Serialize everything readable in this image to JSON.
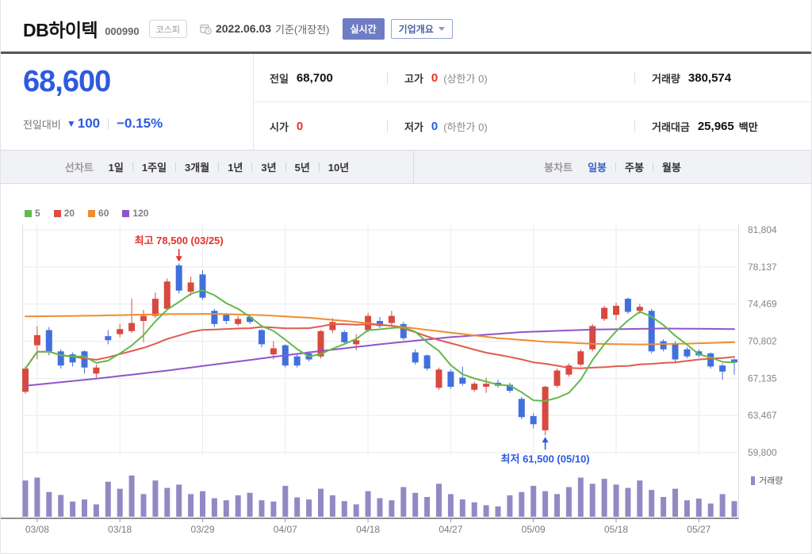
{
  "header": {
    "title": "DB하이텍",
    "code": "000990",
    "market": "코스피",
    "date": "2022.06.03",
    "date_suffix": "기준(개장전)",
    "realtime_btn": "실시간",
    "overview_btn": "기업개요"
  },
  "quote": {
    "price": "68,600",
    "change_label": "전일대비",
    "change_dir": "▼",
    "change_value": "100",
    "change_pct": "−0.15%",
    "prev_label": "전일",
    "prev_value": "68,700",
    "high_label": "고가",
    "high_value": "0",
    "high_sub": "(상한가 0)",
    "volume_label": "거래량",
    "volume_value": "380,574",
    "open_label": "시가",
    "open_value": "0",
    "low_label": "저가",
    "low_value": "0",
    "low_sub": "(하한가 0)",
    "amount_label": "거래대금",
    "amount_value": "25,965",
    "amount_unit": "백만"
  },
  "toolbar": {
    "line_label": "선차트",
    "line_items": [
      "1일",
      "1주일",
      "3개월",
      "1년",
      "3년",
      "5년",
      "10년"
    ],
    "candle_label": "봉차트",
    "candle_items": [
      "일봉",
      "주봉",
      "월봉"
    ],
    "active": "일봉"
  },
  "chart_data": {
    "type": "candlestick+volume",
    "ma_legend": [
      {
        "label": "5",
        "color": "#63b94d"
      },
      {
        "label": "20",
        "color": "#dd4b42"
      },
      {
        "label": "60",
        "color": "#ee8d2f"
      },
      {
        "label": "120",
        "color": "#9055c8"
      }
    ],
    "volume_legend": "거래량",
    "y_ticks": [
      81804,
      78137,
      74469,
      70802,
      67135,
      63467,
      59800
    ],
    "x_ticks": [
      {
        "i": 1,
        "label": "03/08"
      },
      {
        "i": 8,
        "label": "03/18"
      },
      {
        "i": 15,
        "label": "03/29"
      },
      {
        "i": 22,
        "label": "04/07"
      },
      {
        "i": 29,
        "label": "04/18"
      },
      {
        "i": 36,
        "label": "04/27"
      },
      {
        "i": 43,
        "label": "05/09"
      },
      {
        "i": 50,
        "label": "05/18"
      },
      {
        "i": 57,
        "label": "05/27"
      }
    ],
    "annotations": {
      "high": {
        "idx": 13,
        "price": 78500,
        "text": "최고 78,500 (03/25)",
        "color": "#e5312b"
      },
      "low": {
        "idx": 44,
        "price": 61500,
        "text": "최저 61,500 (05/10)",
        "color": "#2d5ae0"
      }
    },
    "candles": [
      [
        "03/07",
        65800,
        68300,
        65600,
        68100,
        88
      ],
      [
        "03/08",
        70400,
        72300,
        69000,
        71400,
        95
      ],
      [
        "03/10",
        71900,
        72200,
        69400,
        69800,
        60
      ],
      [
        "03/11",
        69800,
        70000,
        68100,
        68400,
        53
      ],
      [
        "03/14",
        69500,
        69700,
        68300,
        68700,
        37
      ],
      [
        "03/15",
        69800,
        69900,
        67600,
        68200,
        42
      ],
      [
        "03/16",
        67600,
        68500,
        67200,
        68200,
        30
      ],
      [
        "03/17",
        71300,
        71900,
        70500,
        70900,
        85
      ],
      [
        "03/18",
        71500,
        72500,
        71200,
        72000,
        68
      ],
      [
        "03/21",
        71800,
        75000,
        71600,
        72600,
        100
      ],
      [
        "03/22",
        72800,
        73900,
        70700,
        73300,
        55
      ],
      [
        "03/23",
        73300,
        75600,
        73100,
        75000,
        88
      ],
      [
        "03/24",
        74000,
        77000,
        73900,
        76700,
        70
      ],
      [
        "03/25",
        78300,
        78500,
        75500,
        75800,
        78
      ],
      [
        "03/28",
        75700,
        77200,
        75300,
        76600,
        55
      ],
      [
        "03/29",
        77400,
        77800,
        74900,
        75100,
        62
      ],
      [
        "03/30",
        73800,
        74000,
        72200,
        72500,
        45
      ],
      [
        "03/31",
        73400,
        73600,
        72500,
        72800,
        40
      ],
      [
        "04/01",
        72500,
        73300,
        72300,
        73000,
        52
      ],
      [
        "04/04",
        73200,
        73400,
        72500,
        72700,
        58
      ],
      [
        "04/05",
        71900,
        72000,
        70200,
        70500,
        40
      ],
      [
        "04/06",
        69500,
        70800,
        69000,
        70100,
        37
      ],
      [
        "04/07",
        70400,
        70500,
        68200,
        68400,
        75
      ],
      [
        "04/08",
        69300,
        69500,
        68200,
        68400,
        47
      ],
      [
        "04/11",
        69600,
        69800,
        68800,
        69000,
        42
      ],
      [
        "04/12",
        69300,
        71900,
        69100,
        71800,
        68
      ],
      [
        "04/13",
        71900,
        73100,
        71600,
        72700,
        52
      ],
      [
        "04/14",
        71700,
        71900,
        70500,
        70700,
        38
      ],
      [
        "04/15",
        70500,
        71500,
        69900,
        70900,
        30
      ],
      [
        "04/18",
        71900,
        73600,
        71700,
        73300,
        62
      ],
      [
        "04/19",
        72800,
        73200,
        72100,
        72300,
        45
      ],
      [
        "04/20",
        72600,
        73800,
        72400,
        73300,
        40
      ],
      [
        "04/21",
        72500,
        72700,
        70900,
        71100,
        72
      ],
      [
        "04/22",
        69700,
        70000,
        68500,
        68700,
        58
      ],
      [
        "04/25",
        69400,
        69500,
        67900,
        68100,
        48
      ],
      [
        "04/26",
        66200,
        68200,
        66000,
        68000,
        80
      ],
      [
        "04/27",
        67800,
        68000,
        66100,
        66300,
        55
      ],
      [
        "04/28",
        67200,
        68300,
        66400,
        66600,
        42
      ],
      [
        "04/29",
        66000,
        66800,
        65800,
        66600,
        35
      ],
      [
        "05/02",
        66300,
        67200,
        65700,
        66600,
        28
      ],
      [
        "05/03",
        66700,
        67000,
        66200,
        66400,
        25
      ],
      [
        "05/04",
        66500,
        66700,
        65700,
        65900,
        52
      ],
      [
        "05/06",
        65100,
        65300,
        63100,
        63300,
        60
      ],
      [
        "05/09",
        63400,
        63700,
        62200,
        62600,
        75
      ],
      [
        "05/10",
        62000,
        66400,
        61500,
        66300,
        62
      ],
      [
        "05/11",
        66400,
        68100,
        66200,
        67900,
        55
      ],
      [
        "05/12",
        67500,
        68600,
        67300,
        68400,
        72
      ],
      [
        "05/13",
        68500,
        70000,
        68300,
        69800,
        95
      ],
      [
        "05/16",
        70000,
        72500,
        69800,
        72300,
        80
      ],
      [
        "05/17",
        73000,
        74300,
        72800,
        74100,
        92
      ],
      [
        "05/18",
        73400,
        74600,
        72900,
        74300,
        78
      ],
      [
        "05/19",
        75000,
        75100,
        73500,
        73700,
        70
      ],
      [
        "05/20",
        73800,
        74500,
        73500,
        74200,
        88
      ],
      [
        "05/23",
        73800,
        74000,
        69600,
        69800,
        65
      ],
      [
        "05/24",
        70800,
        71000,
        69800,
        70000,
        48
      ],
      [
        "05/25",
        70600,
        70800,
        68800,
        69000,
        68
      ],
      [
        "05/26",
        70000,
        70200,
        69100,
        69300,
        40
      ],
      [
        "05/27",
        69800,
        70000,
        69200,
        69400,
        44
      ],
      [
        "05/30",
        69600,
        69700,
        68100,
        68300,
        32
      ],
      [
        "05/31",
        68400,
        68600,
        67000,
        67800,
        55
      ],
      [
        "06/02",
        69000,
        69100,
        67500,
        68700,
        38
      ]
    ],
    "ma60_anchors": [
      [
        0,
        73250
      ],
      [
        6,
        73330
      ],
      [
        12,
        73470
      ],
      [
        16,
        73500
      ],
      [
        20,
        73380
      ],
      [
        24,
        73120
      ],
      [
        28,
        72700
      ],
      [
        32,
        72200
      ],
      [
        36,
        71650
      ],
      [
        40,
        71100
      ],
      [
        44,
        70750
      ],
      [
        48,
        70550
      ],
      [
        52,
        70480
      ],
      [
        56,
        70560
      ],
      [
        60,
        70700
      ]
    ],
    "ma120_anchors": [
      [
        0,
        66400
      ],
      [
        6,
        67100
      ],
      [
        12,
        67900
      ],
      [
        18,
        68800
      ],
      [
        24,
        69700
      ],
      [
        30,
        70500
      ],
      [
        36,
        71200
      ],
      [
        42,
        71700
      ],
      [
        48,
        71950
      ],
      [
        54,
        72060
      ],
      [
        60,
        72000
      ]
    ],
    "colors": {
      "up": "#d8493f",
      "down": "#4170dd",
      "ma5": "#63b94d",
      "ma20": "#e25a50",
      "ma60": "#ee8d2f",
      "ma120": "#9055c8",
      "volume": "#9488c4",
      "grid": "#ebebee",
      "border": "#dcdce0",
      "axis": "#8f9095",
      "tick_label": "#7b7b7b",
      "y_label": "#858585"
    }
  }
}
